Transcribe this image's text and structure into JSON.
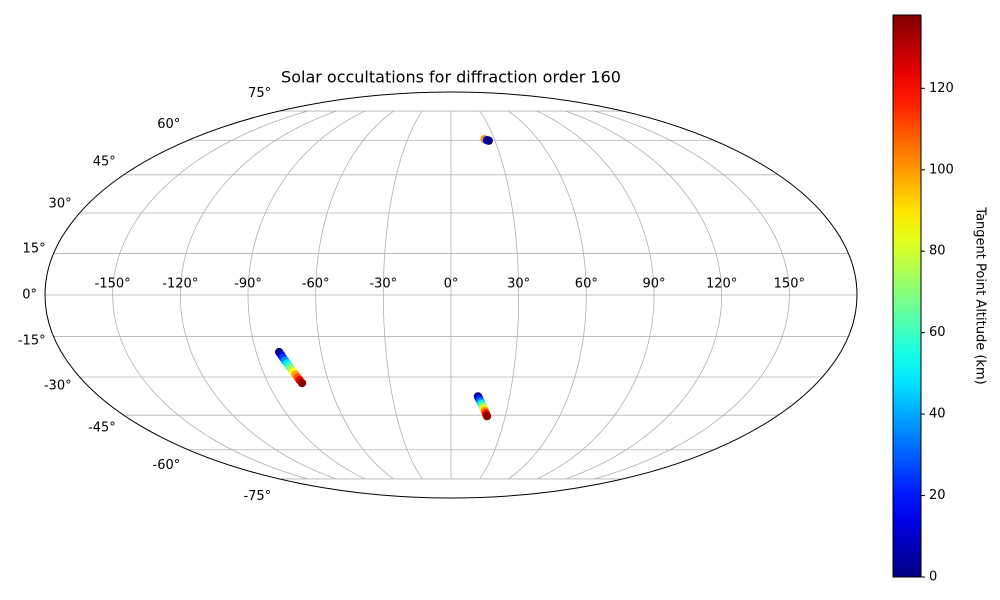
{
  "chart_data": {
    "type": "scatter",
    "projection": "mollweide",
    "title": "Solar occultations for diffraction order 160",
    "x": [
      -79.4,
      -78.8,
      -78.3,
      -77.7,
      -77.2,
      -76.6,
      -76.1,
      -75.5,
      -75.0,
      -74.4,
      -73.9,
      -73.3,
      13.8,
      14.4,
      14.9,
      15.5,
      16.0,
      16.6,
      17.1,
      17.7,
      18.2,
      18.8,
      19.3,
      19.9,
      23.2,
      24.6,
      25.2,
      25.8
    ],
    "y": [
      -20.7,
      -21.8,
      -22.8,
      -23.9,
      -24.9,
      -26.0,
      -27.0,
      -28.1,
      -29.1,
      -30.2,
      -31.2,
      -32.3,
      -37.5,
      -38.2,
      -38.9,
      -39.7,
      -40.4,
      -41.1,
      -41.8,
      -42.5,
      -43.2,
      -44.0,
      -44.7,
      -45.4,
      60.5,
      60.0,
      59.9,
      59.8
    ],
    "color_values": [
      0,
      12,
      25,
      37,
      49,
      62,
      74,
      86,
      99,
      111,
      124,
      136,
      0,
      12,
      25,
      37,
      49,
      62,
      74,
      86,
      99,
      111,
      124,
      136,
      100,
      20,
      10,
      0
    ],
    "colormap": "jet",
    "clim": [
      0,
      138
    ],
    "colorbar_ticks": [
      0,
      20,
      40,
      60,
      80,
      100,
      120
    ],
    "colorbar_label": "Tangent Point Altitude (km)",
    "xlim": [
      -180,
      180
    ],
    "ylim": [
      -90,
      90
    ],
    "xticks": [
      {
        "value": -150,
        "label": "-150°"
      },
      {
        "value": -120,
        "label": "-120°"
      },
      {
        "value": -90,
        "label": "-90°"
      },
      {
        "value": -60,
        "label": "-60°"
      },
      {
        "value": -30,
        "label": "-30°"
      },
      {
        "value": 0,
        "label": "0°"
      },
      {
        "value": 30,
        "label": "30°"
      },
      {
        "value": 60,
        "label": "60°"
      },
      {
        "value": 90,
        "label": "90°"
      },
      {
        "value": 120,
        "label": "120°"
      },
      {
        "value": 150,
        "label": "150°"
      }
    ],
    "yticks": [
      {
        "value": -75,
        "label": "-75°"
      },
      {
        "value": -60,
        "label": "-60°"
      },
      {
        "value": -45,
        "label": "-45°"
      },
      {
        "value": -30,
        "label": "-30°"
      },
      {
        "value": -15,
        "label": "-15°"
      },
      {
        "value": 0,
        "label": "0°"
      },
      {
        "value": 15,
        "label": "15°"
      },
      {
        "value": 30,
        "label": "30°"
      },
      {
        "value": 45,
        "label": "45°"
      },
      {
        "value": 60,
        "label": "60°"
      },
      {
        "value": 75,
        "label": "75°"
      }
    ],
    "grid": true
  }
}
